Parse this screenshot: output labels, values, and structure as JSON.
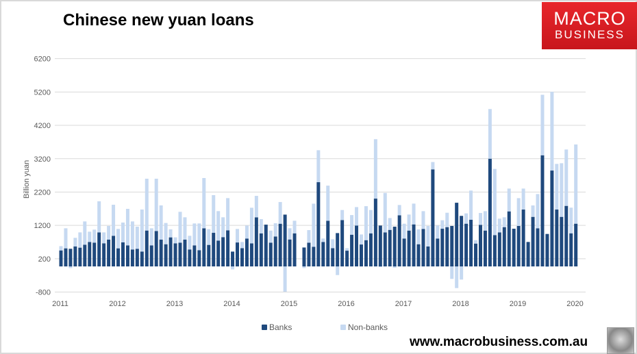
{
  "title": "Chinese new yuan loans",
  "logo": {
    "line1": "MACRO",
    "line2": "BUSINESS"
  },
  "website": "www.macrobusiness.com.au",
  "colors": {
    "banks": "#1f497d",
    "non_banks": "#c6d9f1",
    "logo": "#d91e24"
  },
  "chart_data": {
    "type": "bar",
    "stacked": true,
    "title": "Chinese new yuan loans",
    "ylabel": "Billion yuan",
    "xlabel": "",
    "ylim": [
      -800,
      6200
    ],
    "yticks": [
      -800,
      200,
      1200,
      2200,
      3200,
      4200,
      5200,
      6200
    ],
    "xticks": [
      "2011",
      "2012",
      "2013",
      "2014",
      "2015",
      "2016",
      "2017",
      "2018",
      "2019",
      "2020"
    ],
    "grid": true,
    "legend": "bottom",
    "start": "2011-01",
    "frequency": "monthly",
    "series": [
      {
        "name": "Banks",
        "values": [
          450,
          512,
          498,
          567,
          533,
          621,
          703,
          683,
          990,
          663,
          772,
          888,
          512,
          690,
          601,
          478,
          498,
          416,
          1046,
          601,
          1032,
          772,
          635,
          841,
          663,
          683,
          772,
          478,
          601,
          457,
          1113,
          615,
          977,
          745,
          848,
          1053,
          414,
          688,
          517,
          805,
          661,
          1441,
          962,
          1222,
          682,
          867,
          1250,
          1523,
          778,
          962,
          null,
          537,
          682,
          559,
          2496,
          703,
          1339,
          517,
          969,
          1360,
          442,
          921,
          1195,
          627,
          757,
          962,
          2003,
          1195,
          990,
          1065,
          1161,
          1503,
          806,
          1045,
          1230,
          635,
          1094,
          567,
          2880,
          806,
          1100,
          1148,
          1183,
          1879,
          1485,
          1251,
          1368,
          655,
          1216,
          1045,
          3200,
          909,
          991,
          1148,
          1620,
          1100,
          1183,
          1675,
          703,
          1456,
          1113,
          3303,
          943,
          2845,
          1675,
          1456,
          1785,
          963,
          1251
        ]
      },
      {
        "name": "Non-banks",
        "values": [
          128,
          601,
          -80,
          260,
          457,
          698,
          308,
          390,
          932,
          327,
          411,
          931,
          582,
          595,
          1095,
          841,
          664,
          1260,
          1554,
          512,
          1568,
          1027,
          637,
          239,
          178,
          924,
          671,
          410,
          657,
          801,
          1507,
          472,
          1130,
          883,
          595,
          965,
          -120,
          405,
          185,
          390,
          1068,
          644,
          425,
          0,
          362,
          397,
          650,
          -790,
          336,
          377,
          null,
          -80,
          377,
          1292,
          958,
          103,
          1053,
          268,
          -290,
          301,
          75,
          588,
          554,
          301,
          1019,
          699,
          1782,
          -50,
          1184,
          355,
          -70,
          308,
          444,
          480,
          623,
          445,
          533,
          616,
          220,
          390,
          254,
          431,
          -405,
          -680,
          -425,
          308,
          876,
          102,
          356,
          582,
          1489,
          1984,
          411,
          295,
          684,
          -50,
          834,
          629,
          -50,
          342,
          1027,
          1814,
          -50,
          2362,
          1369,
          1608,
          1691,
          769,
          2376
        ]
      }
    ]
  }
}
